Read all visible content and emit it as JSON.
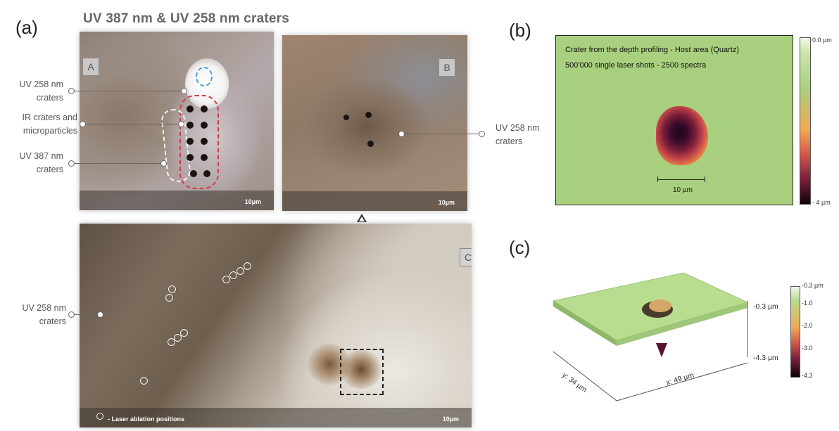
{
  "panel_a": {
    "letter": "(a)",
    "title": "UV 387 nm & UV 258 nm craters",
    "inset_A": {
      "letter": "A",
      "scale": "10µm"
    },
    "inset_B": {
      "letter": "B",
      "scale": "10µm"
    },
    "inset_C": {
      "letter": "C",
      "scale": "10µm",
      "legend": "- Laser ablation positions"
    },
    "callouts": [
      {
        "line1": "UV 258 nm",
        "line2": "craters"
      },
      {
        "line1": "IR craters and",
        "line2": "microparticles"
      },
      {
        "line1": "UV 387 nm",
        "line2": "craters"
      },
      {
        "line1": "UV 258 nm",
        "line2": "craters"
      },
      {
        "line1": "UV 258 nm",
        "line2": "craters"
      }
    ]
  },
  "panel_b": {
    "letter": "(b)",
    "line1": "Crater from the depth profiling - Host area (Quartz)",
    "line2": "500'000 single laser shots - 2500 spectra",
    "scale": "10 µm",
    "colorbar_top": "0.0 µm",
    "colorbar_bottom": "- 4 µm",
    "colors": {
      "background": "#a9d07e",
      "rim": "#f2a04a",
      "deep": "#2a0722"
    }
  },
  "panel_c": {
    "letter": "(c)",
    "z_top": "-0.3 µm",
    "z_bottom": "-4.3 µm",
    "y_axis": "y: 34 µm",
    "x_axis": "x: 49 µm",
    "colorbar_ticks": [
      "-0.3 µm",
      "-1.0",
      "-2.0",
      "-3.0",
      "-4.3"
    ]
  }
}
